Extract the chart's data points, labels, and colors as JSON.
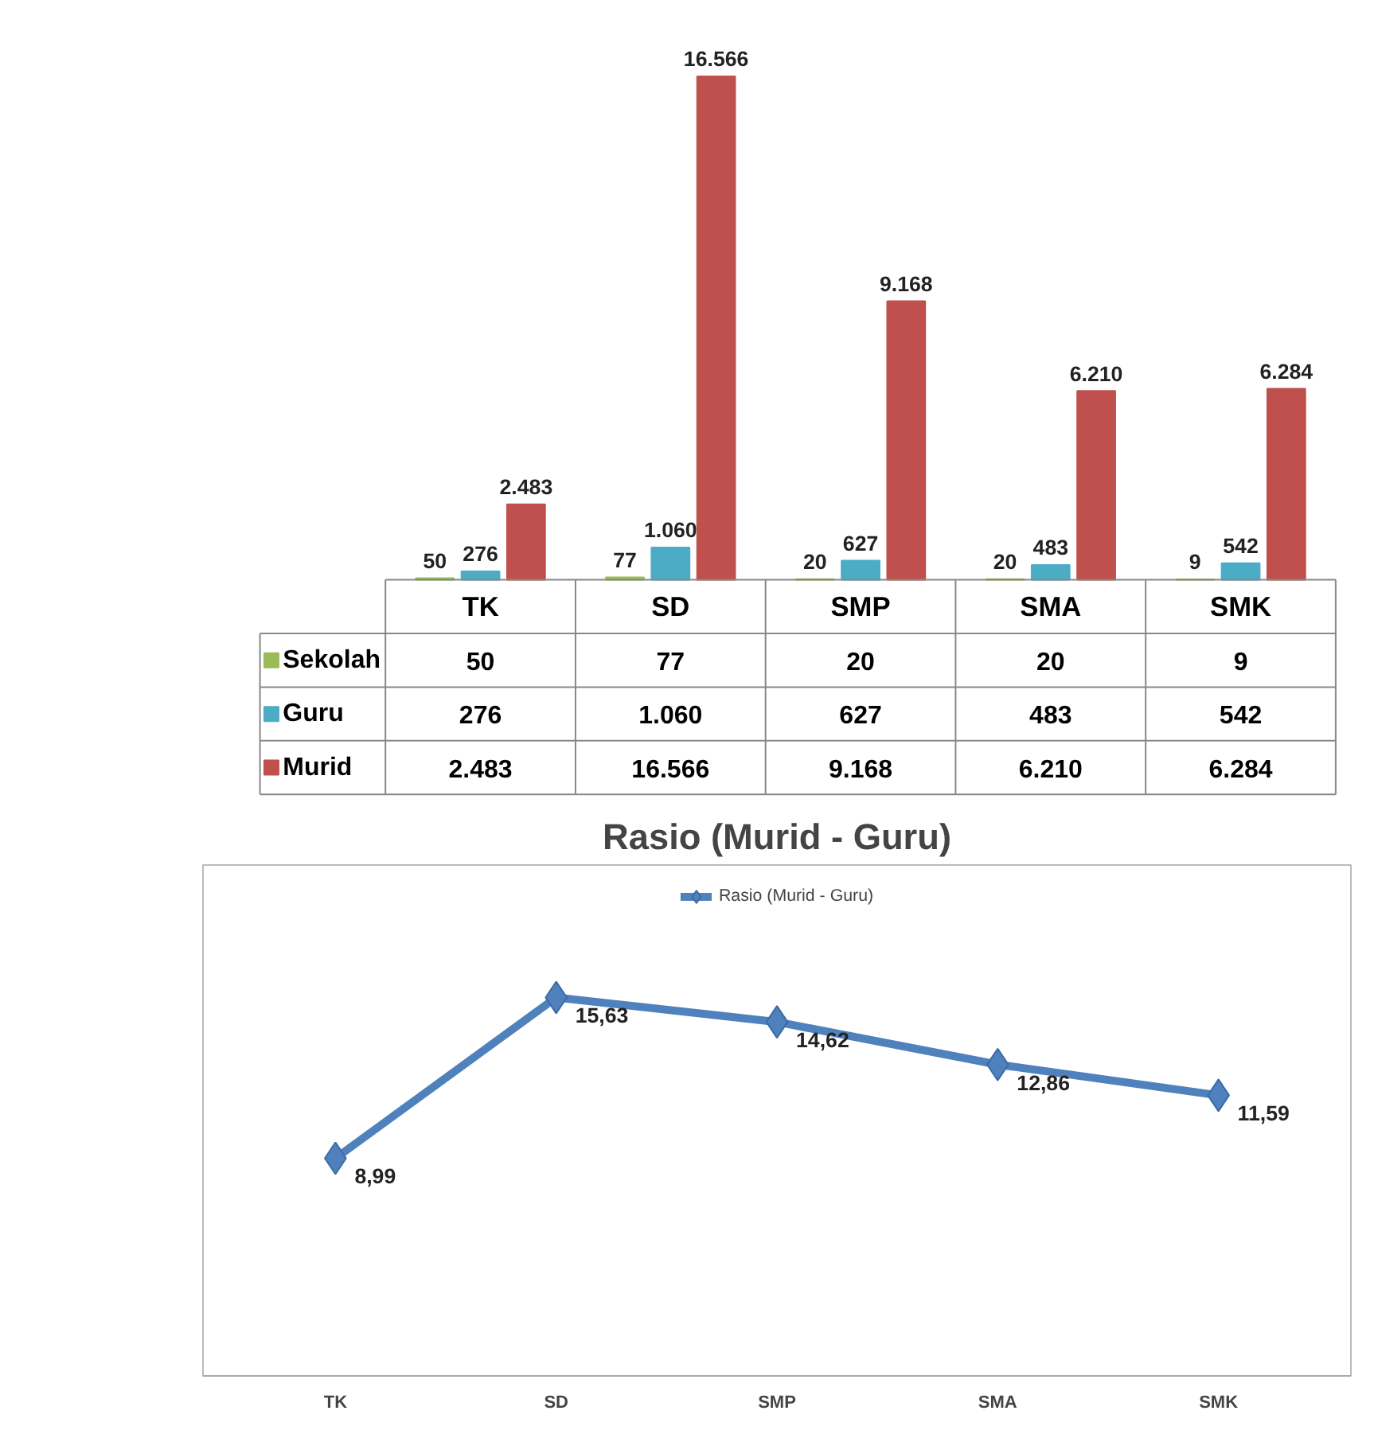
{
  "chart_data": [
    {
      "type": "bar",
      "categories": [
        "TK",
        "SD",
        "SMP",
        "SMA",
        "SMK"
      ],
      "legend": "left",
      "grid": false,
      "series": [
        {
          "name": "Sekolah",
          "color": "#9bbb59",
          "values": [
            50,
            77,
            20,
            20,
            9
          ],
          "value_labels": [
            "50",
            "77",
            "20",
            "20",
            "9"
          ]
        },
        {
          "name": "Guru",
          "color": "#4bacc6",
          "values": [
            276,
            1060,
            627,
            483,
            542
          ],
          "value_labels": [
            "276",
            "1.060",
            "627",
            "483",
            "542"
          ]
        },
        {
          "name": "Murid",
          "color": "#c0504d",
          "values": [
            2483,
            16566,
            9168,
            6210,
            6284
          ],
          "value_labels": [
            "2.483",
            "16.566",
            "9.168",
            "6.210",
            "6.284"
          ]
        }
      ]
    },
    {
      "type": "line",
      "title": "Rasio (Murid - Guru)",
      "categories": [
        "TK",
        "SD",
        "SMP",
        "SMA",
        "SMK"
      ],
      "legend": "top",
      "marker": "diamond",
      "grid": false,
      "series": [
        {
          "name": "Rasio (Murid - Guru)",
          "color": "#4f81bd",
          "values": [
            8.99,
            15.63,
            14.62,
            12.86,
            11.59
          ],
          "value_labels": [
            "8,99",
            "15,63",
            "14,62",
            "12,86",
            "11,59"
          ]
        }
      ]
    }
  ]
}
